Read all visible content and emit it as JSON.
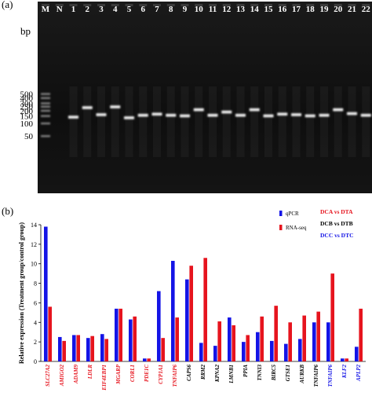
{
  "panel_a": {
    "label": "(a)",
    "unit_label": "bp",
    "lane_labels": [
      "M",
      "N",
      "1",
      "2",
      "3",
      "4",
      "5",
      "6",
      "7",
      "8",
      "9",
      "10",
      "11",
      "12",
      "13",
      "14",
      "15",
      "16",
      "17",
      "18",
      "19",
      "20",
      "21",
      "22"
    ],
    "ladder_labels": [
      "500",
      "400",
      "300",
      "250",
      "200",
      "150",
      "100",
      "50"
    ],
    "ladder_values": [
      500,
      400,
      300,
      250,
      200,
      150,
      100,
      50
    ],
    "band_sizes_bp": [
      null,
      null,
      140,
      235,
      160,
      245,
      135,
      155,
      165,
      155,
      150,
      210,
      155,
      185,
      155,
      210,
      150,
      165,
      160,
      150,
      155,
      210,
      170,
      155
    ]
  },
  "panel_b": {
    "label": "(b)",
    "legend": {
      "series": [
        {
          "name": "qPCR",
          "color": "#1414e6"
        },
        {
          "name": "RNA-seq",
          "color": "#e6141e"
        }
      ],
      "groups": [
        {
          "name": "DCA vs DTA",
          "color": "#e6141e"
        },
        {
          "name": "DCB vs DTB",
          "color": "#000000"
        },
        {
          "name": "DCC vs DTC",
          "color": "#1414e6"
        }
      ]
    }
  },
  "chart_data": {
    "type": "bar",
    "ylabel": "Relative expression (Treatment group/control group)",
    "ylim": [
      0,
      14
    ],
    "yticks": [
      0,
      2,
      4,
      6,
      8,
      10,
      12,
      14
    ],
    "categories": [
      "SLC27A2",
      "AMIGO2",
      "ADAM9",
      "LDLR",
      "EIF4EBP1",
      "MGARP",
      "CORL1",
      "PDE1C",
      "CYP1A1",
      "TNFAIP6",
      "CAPS6",
      "RRM2",
      "KPNA2",
      "LMNB1",
      "PPIA",
      "TNNI3",
      "BIRC5",
      "GTSE1",
      "AURKB",
      "TNFAIP6",
      "TNFAIP6",
      "KLF2",
      "APLP2"
    ],
    "category_colors": [
      "#e6141e",
      "#e6141e",
      "#e6141e",
      "#e6141e",
      "#e6141e",
      "#e6141e",
      "#e6141e",
      "#e6141e",
      "#e6141e",
      "#e6141e",
      "#000000",
      "#000000",
      "#000000",
      "#000000",
      "#000000",
      "#000000",
      "#000000",
      "#000000",
      "#000000",
      "#000000",
      "#1414e6",
      "#1414e6",
      "#1414e6"
    ],
    "series": [
      {
        "name": "qPCR",
        "color": "#1414e6",
        "values": [
          13.8,
          2.5,
          2.7,
          2.4,
          2.8,
          5.4,
          4.3,
          0.3,
          7.2,
          10.3,
          8.4,
          1.9,
          1.6,
          4.5,
          2.0,
          3.0,
          2.1,
          1.8,
          2.3,
          4.0,
          4.0,
          0.3,
          1.5
        ]
      },
      {
        "name": "RNA-seq",
        "color": "#e6141e",
        "values": [
          5.6,
          2.1,
          2.7,
          2.6,
          2.3,
          5.4,
          4.6,
          0.3,
          2.4,
          4.5,
          9.8,
          10.6,
          4.1,
          3.7,
          2.7,
          4.6,
          5.7,
          4.0,
          4.7,
          5.1,
          9.0,
          0.3,
          5.4
        ]
      }
    ]
  }
}
